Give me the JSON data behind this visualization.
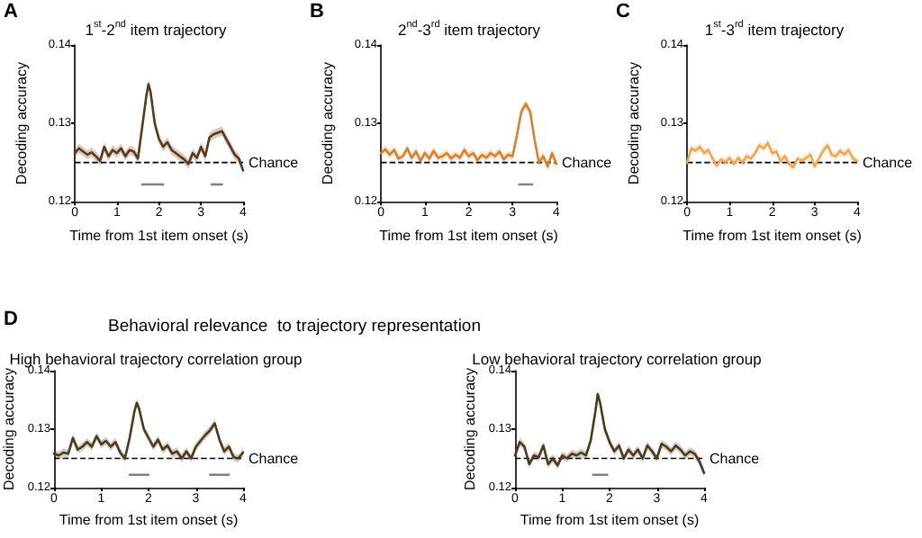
{
  "chart_data": [
    {
      "type": "line",
      "title": "1$^{st}$-2$^{nd}$ item trajectory",
      "xlabel": "Time from 1st item onset (s)",
      "ylabel": "Decoding accuracy",
      "annotations": [
        "A"
      ],
      "xlim": [
        0,
        4
      ],
      "xticks": [
        0,
        1,
        2,
        3,
        4
      ],
      "ylim": [
        0.12,
        0.14
      ],
      "yticks": [
        0.12,
        0.13,
        0.14
      ],
      "ref_lines": [
        {
          "axis": "y",
          "value": 0.125,
          "label": "Chance",
          "color": "#000000",
          "line_style": "dashed"
        }
      ],
      "x": [
        0,
        0.1,
        0.2,
        0.3,
        0.4,
        0.5,
        0.6,
        0.7,
        0.8,
        0.9,
        1.0,
        1.1,
        1.2,
        1.3,
        1.4,
        1.5,
        1.6,
        1.7,
        1.75,
        1.8,
        1.9,
        2.0,
        2.1,
        2.2,
        2.3,
        2.4,
        2.5,
        2.6,
        2.7,
        2.8,
        2.9,
        3.0,
        3.1,
        3.2,
        3.3,
        3.4,
        3.5,
        3.6,
        3.7,
        3.8,
        3.9,
        4.0
      ],
      "series": [
        {
          "color": "#5a3a1a",
          "values": [
            0.1262,
            0.1268,
            0.1264,
            0.126,
            0.1263,
            0.1258,
            0.1252,
            0.127,
            0.1258,
            0.1266,
            0.1262,
            0.1268,
            0.1258,
            0.1266,
            0.1264,
            0.1255,
            0.1295,
            0.1335,
            0.135,
            0.134,
            0.13,
            0.128,
            0.127,
            0.1276,
            0.1266,
            0.1262,
            0.1258,
            0.1254,
            0.1248,
            0.1262,
            0.1256,
            0.127,
            0.1258,
            0.1282,
            0.1286,
            0.1288,
            0.129,
            0.128,
            0.127,
            0.126,
            0.1255,
            0.124
          ],
          "lower": [
            0.1256,
            0.1262,
            0.1258,
            0.1254,
            0.1257,
            0.1252,
            0.1246,
            0.1264,
            0.1252,
            0.126,
            0.1256,
            0.1262,
            0.1252,
            0.126,
            0.1258,
            0.1249,
            0.1289,
            0.1329,
            0.1344,
            0.1334,
            0.1294,
            0.1274,
            0.1264,
            0.127,
            0.126,
            0.1256,
            0.1252,
            0.1248,
            0.1242,
            0.1256,
            0.125,
            0.1264,
            0.1252,
            0.1276,
            0.128,
            0.1282,
            0.1284,
            0.1274,
            0.1264,
            0.1254,
            0.1249,
            0.1234
          ],
          "upper": [
            0.1268,
            0.1274,
            0.127,
            0.1266,
            0.1269,
            0.1264,
            0.1258,
            0.1276,
            0.1264,
            0.1272,
            0.1268,
            0.1274,
            0.1264,
            0.1272,
            0.127,
            0.1261,
            0.1301,
            0.1341,
            0.1356,
            0.1346,
            0.1306,
            0.1286,
            0.1276,
            0.1282,
            0.1272,
            0.1268,
            0.1264,
            0.126,
            0.1254,
            0.1268,
            0.1262,
            0.1276,
            0.1264,
            0.1288,
            0.1292,
            0.1294,
            0.1296,
            0.1286,
            0.1276,
            0.1266,
            0.1261,
            0.1246
          ]
        },
        {
          "color": "#808080",
          "x": [
            1.6,
            2.1
          ],
          "values": [
            0.1222,
            0.1222
          ]
        },
        {
          "color": "#808080",
          "x": [
            3.25,
            3.5
          ],
          "values": [
            0.1222,
            0.1222
          ]
        }
      ]
    },
    {
      "type": "line",
      "title": "2$^{nd}$-3$^{rd}$ item trajectory",
      "xlabel": "Time from 1st item onset (s)",
      "ylabel": "Decoding accuracy",
      "annotations": [
        "B"
      ],
      "xlim": [
        0,
        4
      ],
      "xticks": [
        0,
        1,
        2,
        3,
        4
      ],
      "ylim": [
        0.12,
        0.14
      ],
      "yticks": [
        0.12,
        0.13,
        0.14
      ],
      "ref_lines": [
        {
          "axis": "y",
          "value": 0.125,
          "label": "Chance",
          "color": "#000000",
          "line_style": "dashed"
        }
      ],
      "x": [
        0,
        0.1,
        0.2,
        0.3,
        0.4,
        0.5,
        0.6,
        0.7,
        0.8,
        0.9,
        1.0,
        1.1,
        1.2,
        1.3,
        1.4,
        1.5,
        1.6,
        1.7,
        1.8,
        1.9,
        2.0,
        2.1,
        2.2,
        2.3,
        2.4,
        2.5,
        2.6,
        2.7,
        2.8,
        2.9,
        3.0,
        3.1,
        3.2,
        3.3,
        3.4,
        3.5,
        3.6,
        3.7,
        3.8,
        3.9,
        4.0
      ],
      "series": [
        {
          "color": "#d9822b",
          "values": [
            0.1262,
            0.1267,
            0.126,
            0.1266,
            0.1255,
            0.1258,
            0.1268,
            0.1256,
            0.1264,
            0.1252,
            0.1262,
            0.1255,
            0.1265,
            0.1256,
            0.1258,
            0.1262,
            0.1255,
            0.126,
            0.1256,
            0.1266,
            0.1258,
            0.1262,
            0.1253,
            0.126,
            0.1256,
            0.1262,
            0.1258,
            0.1264,
            0.1254,
            0.126,
            0.1258,
            0.1285,
            0.1315,
            0.1325,
            0.1315,
            0.128,
            0.125,
            0.1258,
            0.1245,
            0.1262,
            0.1248
          ],
          "lower": [
            0.1257,
            0.1262,
            0.1255,
            0.1261,
            0.125,
            0.1253,
            0.1263,
            0.1251,
            0.1259,
            0.1247,
            0.1257,
            0.125,
            0.126,
            0.1251,
            0.1253,
            0.1257,
            0.125,
            0.1255,
            0.1251,
            0.1261,
            0.1253,
            0.1257,
            0.1248,
            0.1255,
            0.1251,
            0.1257,
            0.1253,
            0.1259,
            0.1249,
            0.1255,
            0.1253,
            0.128,
            0.131,
            0.132,
            0.131,
            0.1275,
            0.1245,
            0.1253,
            0.124,
            0.1257,
            0.1243
          ],
          "upper": [
            0.1267,
            0.1272,
            0.1265,
            0.1271,
            0.126,
            0.1263,
            0.1273,
            0.1261,
            0.1269,
            0.1257,
            0.1267,
            0.126,
            0.127,
            0.1261,
            0.1263,
            0.1267,
            0.126,
            0.1265,
            0.1261,
            0.1271,
            0.1263,
            0.1267,
            0.1258,
            0.1265,
            0.1261,
            0.1267,
            0.1263,
            0.1269,
            0.1259,
            0.1265,
            0.1263,
            0.129,
            0.132,
            0.133,
            0.132,
            0.1285,
            0.1255,
            0.1263,
            0.125,
            0.1267,
            0.1253
          ]
        },
        {
          "color": "#808080",
          "x": [
            3.15,
            3.45
          ],
          "values": [
            0.1222,
            0.1222
          ]
        }
      ]
    },
    {
      "type": "line",
      "title": "1$^{st}$-3$^{rd}$ item trajectory",
      "xlabel": "Time from 1st item onset (s)",
      "ylabel": "Decoding accuracy",
      "annotations": [
        "C"
      ],
      "xlim": [
        0,
        4
      ],
      "xticks": [
        0,
        1,
        2,
        3,
        4
      ],
      "ylim": [
        0.12,
        0.14
      ],
      "yticks": [
        0.12,
        0.13,
        0.14
      ],
      "ref_lines": [
        {
          "axis": "y",
          "value": 0.125,
          "label": "Chance",
          "color": "#000000",
          "line_style": "dashed"
        }
      ],
      "x": [
        0,
        0.1,
        0.2,
        0.3,
        0.4,
        0.5,
        0.6,
        0.7,
        0.8,
        0.9,
        1.0,
        1.1,
        1.2,
        1.3,
        1.4,
        1.5,
        1.6,
        1.7,
        1.8,
        1.9,
        2.0,
        2.1,
        2.2,
        2.3,
        2.4,
        2.5,
        2.6,
        2.7,
        2.8,
        2.9,
        3.0,
        3.1,
        3.2,
        3.3,
        3.4,
        3.5,
        3.6,
        3.7,
        3.8,
        3.9,
        4.0
      ],
      "series": [
        {
          "color": "#f0a850",
          "values": [
            0.125,
            0.1268,
            0.1265,
            0.127,
            0.1262,
            0.1266,
            0.1255,
            0.1246,
            0.1254,
            0.125,
            0.1256,
            0.1248,
            0.1256,
            0.125,
            0.1258,
            0.1255,
            0.1262,
            0.1272,
            0.1268,
            0.1275,
            0.1262,
            0.1264,
            0.1252,
            0.1258,
            0.1248,
            0.1244,
            0.1255,
            0.1252,
            0.1256,
            0.126,
            0.1245,
            0.1255,
            0.1265,
            0.1272,
            0.126,
            0.1258,
            0.1265,
            0.126,
            0.1266,
            0.1255,
            0.1252
          ],
          "lower": [
            0.1245,
            0.1263,
            0.126,
            0.1265,
            0.1257,
            0.1261,
            0.125,
            0.1241,
            0.1249,
            0.1245,
            0.1251,
            0.1243,
            0.1251,
            0.1245,
            0.1253,
            0.125,
            0.1257,
            0.1267,
            0.1263,
            0.127,
            0.1257,
            0.1259,
            0.1247,
            0.1253,
            0.1243,
            0.1239,
            0.125,
            0.1247,
            0.1251,
            0.1255,
            0.124,
            0.125,
            0.126,
            0.1267,
            0.1255,
            0.1253,
            0.126,
            0.1255,
            0.1261,
            0.125,
            0.1247
          ],
          "upper": [
            0.1255,
            0.1273,
            0.127,
            0.1275,
            0.1267,
            0.1271,
            0.126,
            0.1251,
            0.1259,
            0.1255,
            0.1261,
            0.1253,
            0.1261,
            0.1255,
            0.1263,
            0.126,
            0.1267,
            0.1277,
            0.1273,
            0.128,
            0.1267,
            0.1269,
            0.1257,
            0.1263,
            0.1253,
            0.1249,
            0.126,
            0.1257,
            0.1261,
            0.1265,
            0.125,
            0.126,
            0.127,
            0.1277,
            0.1265,
            0.1263,
            0.127,
            0.1265,
            0.1271,
            0.126,
            0.1257
          ]
        }
      ]
    },
    {
      "type": "line",
      "title": "High behavioral trajectory correlation group",
      "xlabel": "Time from 1st item onset (s)",
      "ylabel": "Decoding accuracy",
      "annotations": [
        "D",
        "Behavioral relevance  to trajectory representation"
      ],
      "xlim": [
        0,
        4
      ],
      "xticks": [
        0,
        1,
        2,
        3,
        4
      ],
      "ylim": [
        0.12,
        0.14
      ],
      "yticks": [
        0.12,
        0.13,
        0.14
      ],
      "ref_lines": [
        {
          "axis": "y",
          "value": 0.125,
          "label": "Chance",
          "color": "#000000",
          "line_style": "dashed"
        }
      ],
      "x": [
        0,
        0.1,
        0.2,
        0.3,
        0.4,
        0.5,
        0.6,
        0.7,
        0.8,
        0.9,
        1.0,
        1.1,
        1.2,
        1.3,
        1.4,
        1.5,
        1.6,
        1.7,
        1.75,
        1.8,
        1.9,
        2.0,
        2.1,
        2.2,
        2.3,
        2.4,
        2.5,
        2.6,
        2.7,
        2.8,
        2.9,
        3.0,
        3.1,
        3.2,
        3.3,
        3.4,
        3.5,
        3.6,
        3.7,
        3.8,
        3.9,
        4.0
      ],
      "series": [
        {
          "color": "#4d3a1c",
          "values": [
            0.1258,
            0.1255,
            0.126,
            0.1258,
            0.1285,
            0.1265,
            0.127,
            0.1278,
            0.127,
            0.1288,
            0.1274,
            0.128,
            0.127,
            0.1278,
            0.126,
            0.125,
            0.1285,
            0.133,
            0.1345,
            0.1335,
            0.13,
            0.1285,
            0.127,
            0.1282,
            0.1265,
            0.1272,
            0.1258,
            0.1262,
            0.125,
            0.1262,
            0.125,
            0.127,
            0.128,
            0.129,
            0.1298,
            0.131,
            0.1282,
            0.1262,
            0.127,
            0.1252,
            0.125,
            0.126
          ],
          "lower": [
            0.1251,
            0.1248,
            0.1253,
            0.1251,
            0.1278,
            0.1258,
            0.1263,
            0.1271,
            0.1263,
            0.1281,
            0.1267,
            0.1273,
            0.1263,
            0.1271,
            0.1253,
            0.1243,
            0.1278,
            0.1323,
            0.1338,
            0.1328,
            0.1293,
            0.1278,
            0.1263,
            0.1275,
            0.1258,
            0.1265,
            0.1251,
            0.1255,
            0.1243,
            0.1255,
            0.1243,
            0.1263,
            0.1273,
            0.1283,
            0.1291,
            0.1303,
            0.1275,
            0.1255,
            0.1263,
            0.1245,
            0.1243,
            0.1253
          ],
          "upper": [
            0.1265,
            0.1262,
            0.1267,
            0.1265,
            0.1292,
            0.1272,
            0.1277,
            0.1285,
            0.1277,
            0.1295,
            0.1281,
            0.1287,
            0.1277,
            0.1285,
            0.1267,
            0.1257,
            0.1292,
            0.1337,
            0.1352,
            0.1342,
            0.1307,
            0.1292,
            0.1277,
            0.1289,
            0.1272,
            0.1279,
            0.1265,
            0.1269,
            0.1257,
            0.1269,
            0.1257,
            0.1277,
            0.1287,
            0.1297,
            0.1305,
            0.1317,
            0.1289,
            0.1269,
            0.1277,
            0.1259,
            0.1257,
            0.1267
          ]
        },
        {
          "color": "#808080",
          "x": [
            1.6,
            2.0
          ],
          "values": [
            0.1222,
            0.1222
          ]
        },
        {
          "color": "#808080",
          "x": [
            3.3,
            3.7
          ],
          "values": [
            0.1222,
            0.1222
          ]
        }
      ]
    },
    {
      "type": "line",
      "title": "Low behavioral trajectory correlation group",
      "xlabel": "Time from 1st item onset (s)",
      "ylabel": "Decoding accuracy",
      "xlim": [
        0,
        4
      ],
      "xticks": [
        0,
        1,
        2,
        3,
        4
      ],
      "ylim": [
        0.12,
        0.14
      ],
      "yticks": [
        0.12,
        0.13,
        0.14
      ],
      "ref_lines": [
        {
          "axis": "y",
          "value": 0.125,
          "label": "Chance",
          "color": "#000000",
          "line_style": "dashed"
        }
      ],
      "x": [
        0,
        0.1,
        0.2,
        0.3,
        0.4,
        0.5,
        0.6,
        0.7,
        0.8,
        0.9,
        1.0,
        1.1,
        1.2,
        1.3,
        1.4,
        1.5,
        1.6,
        1.7,
        1.75,
        1.8,
        1.9,
        2.0,
        2.1,
        2.2,
        2.3,
        2.4,
        2.5,
        2.6,
        2.7,
        2.8,
        2.9,
        3.0,
        3.1,
        3.2,
        3.3,
        3.4,
        3.5,
        3.6,
        3.7,
        3.8,
        3.9,
        4.0
      ],
      "series": [
        {
          "color": "#4d3a1c",
          "values": [
            0.1255,
            0.1278,
            0.127,
            0.124,
            0.1255,
            0.1252,
            0.1272,
            0.124,
            0.125,
            0.1238,
            0.1255,
            0.125,
            0.1258,
            0.1255,
            0.126,
            0.1255,
            0.128,
            0.133,
            0.136,
            0.1345,
            0.13,
            0.1278,
            0.1262,
            0.1272,
            0.125,
            0.1265,
            0.1255,
            0.1265,
            0.125,
            0.1272,
            0.1262,
            0.125,
            0.1275,
            0.127,
            0.1262,
            0.1272,
            0.1265,
            0.1255,
            0.1262,
            0.1258,
            0.1245,
            0.1225
          ],
          "lower": [
            0.1248,
            0.1271,
            0.1263,
            0.1233,
            0.1248,
            0.1245,
            0.1265,
            0.1233,
            0.1243,
            0.1231,
            0.1248,
            0.1243,
            0.1251,
            0.1248,
            0.1253,
            0.1248,
            0.1273,
            0.1323,
            0.1353,
            0.1338,
            0.1293,
            0.1271,
            0.1255,
            0.1265,
            0.1243,
            0.1258,
            0.1248,
            0.1258,
            0.1243,
            0.1265,
            0.1255,
            0.1243,
            0.1268,
            0.1263,
            0.1255,
            0.1265,
            0.1258,
            0.1248,
            0.1255,
            0.1251,
            0.1238,
            0.1218
          ],
          "upper": [
            0.1262,
            0.1285,
            0.1277,
            0.1247,
            0.1262,
            0.1259,
            0.1279,
            0.1247,
            0.1257,
            0.1245,
            0.1262,
            0.1257,
            0.1265,
            0.1262,
            0.1267,
            0.1262,
            0.1287,
            0.1337,
            0.1367,
            0.1352,
            0.1307,
            0.1285,
            0.1269,
            0.1279,
            0.1257,
            0.1272,
            0.1262,
            0.1272,
            0.1257,
            0.1279,
            0.1269,
            0.1257,
            0.1282,
            0.1277,
            0.1269,
            0.1279,
            0.1272,
            0.1262,
            0.1269,
            0.1265,
            0.1252,
            0.1232
          ]
        },
        {
          "color": "#808080",
          "x": [
            1.65,
            1.95
          ],
          "values": [
            0.1222,
            0.1222
          ]
        }
      ]
    }
  ]
}
